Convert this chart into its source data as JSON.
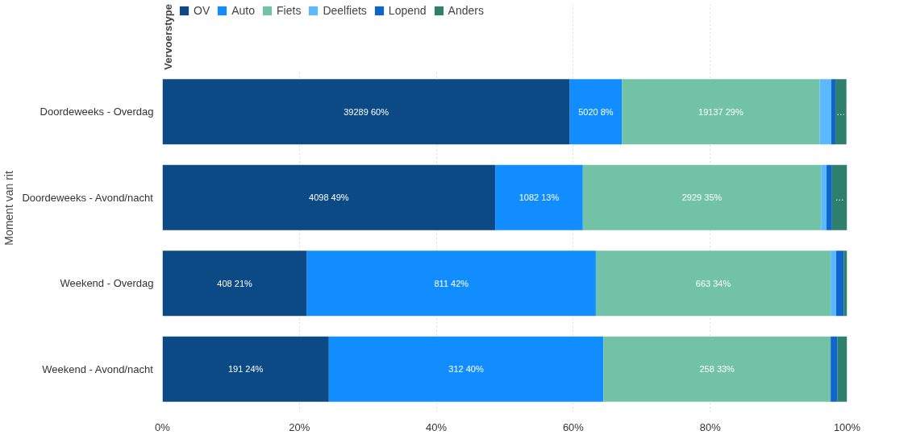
{
  "chart_data": {
    "type": "bar",
    "orientation": "horizontal",
    "stacked": true,
    "ylabel": "Moment van rit",
    "legend_title": "Vervoerstype",
    "legend": "top left",
    "grid": "x",
    "categories": [
      "Doordeweeks - Overdag",
      "Doordeweeks - Avond/nacht",
      "Weekend - Overdag",
      "Weekend - Avond/nacht"
    ],
    "xlim": [
      0,
      100
    ],
    "xticks": [
      {
        "value": 0,
        "label": "0%"
      },
      {
        "value": 20,
        "label": "20%"
      },
      {
        "value": 40,
        "label": "40%"
      },
      {
        "value": 60,
        "label": "60%"
      },
      {
        "value": 80,
        "label": "80%"
      },
      {
        "value": 100,
        "label": "100%"
      }
    ],
    "series": [
      {
        "name": "OV",
        "color": "#0b4a85",
        "values": [
          59.5,
          48.6,
          21.1,
          24.3
        ],
        "value_labels": [
          "39289 60%",
          "4098 49%",
          "408 21%",
          "191 24%"
        ]
      },
      {
        "name": "Auto",
        "color": "#118dff",
        "values": [
          7.6,
          12.8,
          42.2,
          40.1
        ],
        "value_labels": [
          "5020 8%",
          "1082 13%",
          "811 42%",
          "312 40%"
        ]
      },
      {
        "name": "Fiets",
        "color": "#72c2a8",
        "values": [
          28.9,
          34.8,
          34.3,
          33.2
        ],
        "value_labels": [
          "19137 29%",
          "2929 35%",
          "663 34%",
          "258 33%"
        ]
      },
      {
        "name": "Deelfiets",
        "color": "#5cb8ff",
        "values": [
          1.7,
          0.8,
          0.8,
          0
        ],
        "value_labels": [
          null,
          null,
          null,
          null
        ]
      },
      {
        "name": "Lopend",
        "color": "#1066c8",
        "values": [
          0.6,
          0.8,
          1.1,
          1.0
        ],
        "value_labels": [
          null,
          null,
          null,
          null
        ]
      },
      {
        "name": "Anders",
        "color": "#2e7f6d",
        "values": [
          1.6,
          2.2,
          0.5,
          1.4
        ],
        "value_labels": [
          "…",
          "…",
          null,
          null
        ]
      }
    ]
  }
}
